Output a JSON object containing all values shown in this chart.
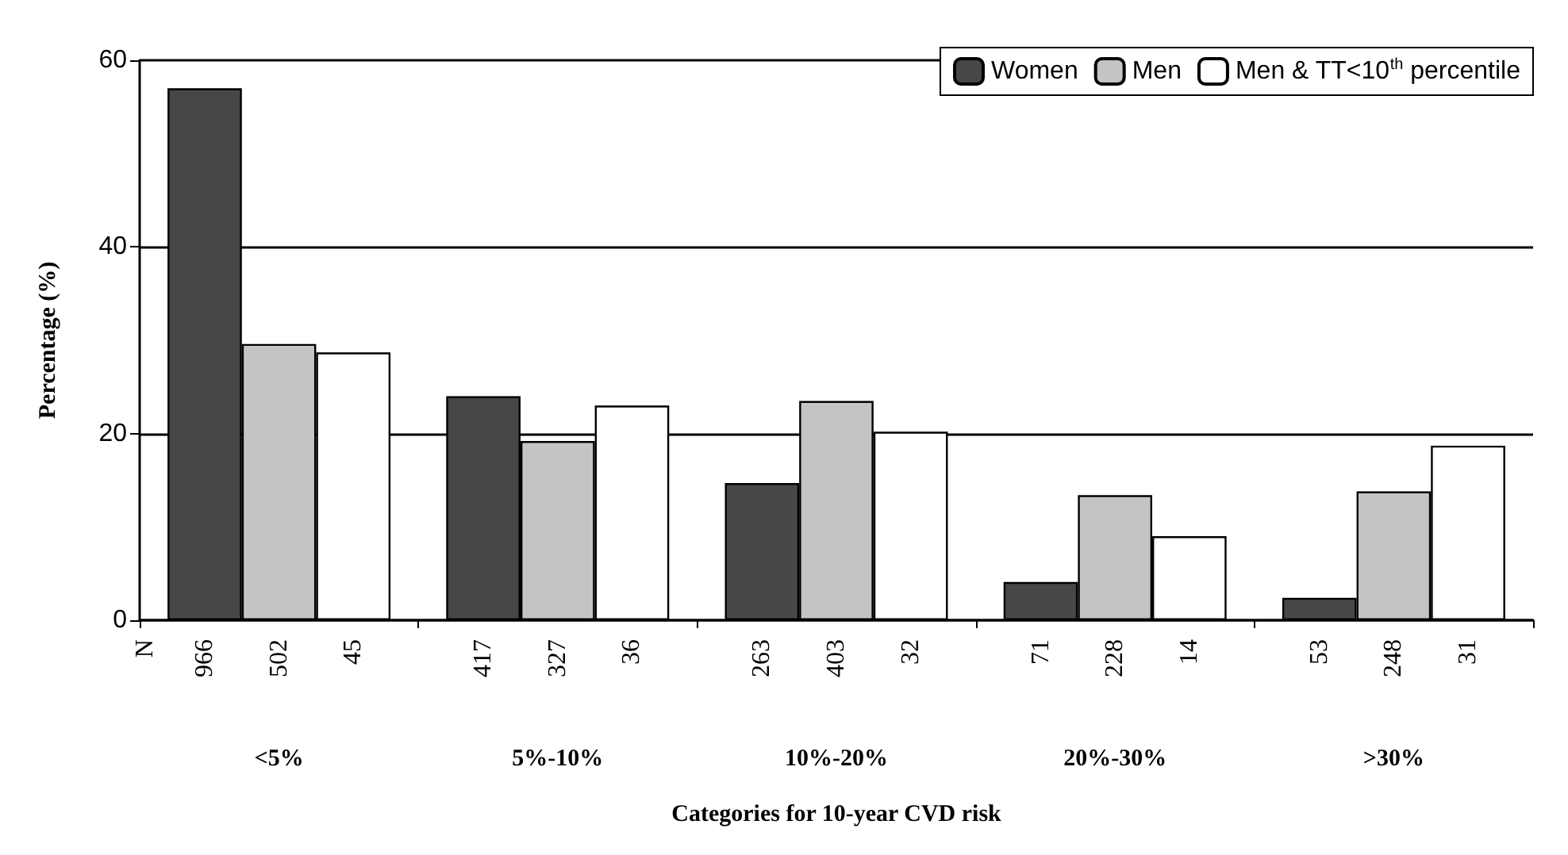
{
  "chart_data": {
    "type": "bar",
    "xlabel": "Categories for 10-year CVD risk",
    "ylabel": "Percentage (%)",
    "categories": [
      "<5%",
      "5%-10%",
      "10%-20%",
      "20%-30%",
      ">30%"
    ],
    "series": [
      {
        "name": "Women",
        "color": "#474747",
        "values": [
          57,
          24.0,
          14.7,
          4.1,
          2.4
        ]
      },
      {
        "name": "Men",
        "color": "#c4c4c4",
        "values": [
          29.6,
          19.2,
          23.5,
          13.4,
          13.8
        ]
      },
      {
        "name": "Men & TT<10$^{th}$ percentile",
        "color": "#ffffff",
        "values": [
          28.7,
          23.0,
          20.2,
          9.0,
          18.7
        ]
      }
    ],
    "ylim": [
      0,
      60
    ],
    "yticks": [
      0,
      20,
      40,
      60
    ],
    "grid": "y",
    "legend": "top right",
    "annotations": [
      "N",
      "966",
      "502",
      "45",
      "417",
      "327",
      "36",
      "263",
      "403",
      "32",
      "71",
      "228",
      "14",
      "53",
      "248",
      "31"
    ]
  }
}
